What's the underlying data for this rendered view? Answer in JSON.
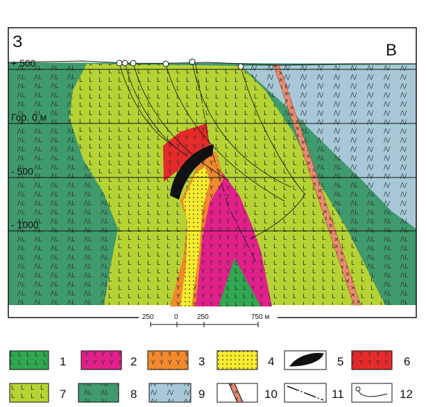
{
  "section": {
    "west": "З",
    "east": "В",
    "levels": [
      "+ 500",
      "Гор. 0 м",
      "- 500",
      "- 1000"
    ]
  },
  "scale": {
    "labels": [
      "250",
      "0",
      "250",
      "750 м"
    ]
  },
  "legend": {
    "items": [
      "1",
      "2",
      "3",
      "4",
      "5",
      "6",
      "7",
      "8",
      "9",
      "10",
      "11",
      "12"
    ]
  }
}
